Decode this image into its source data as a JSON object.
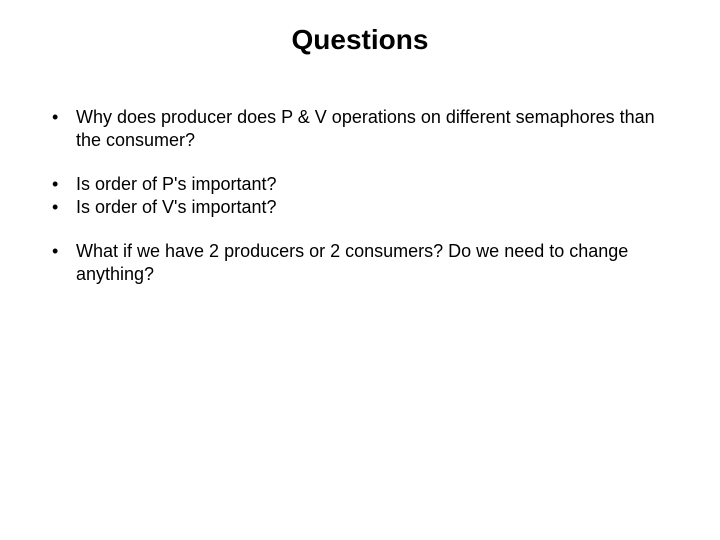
{
  "slide": {
    "title": "Questions",
    "bullets": [
      "Why does producer does P & V operations on different semaphores than the consumer?",
      "Is order of P's important?",
      "Is order of V's important?",
      "What if we have 2 producers or 2 consumers? Do we need to change anything?"
    ]
  }
}
